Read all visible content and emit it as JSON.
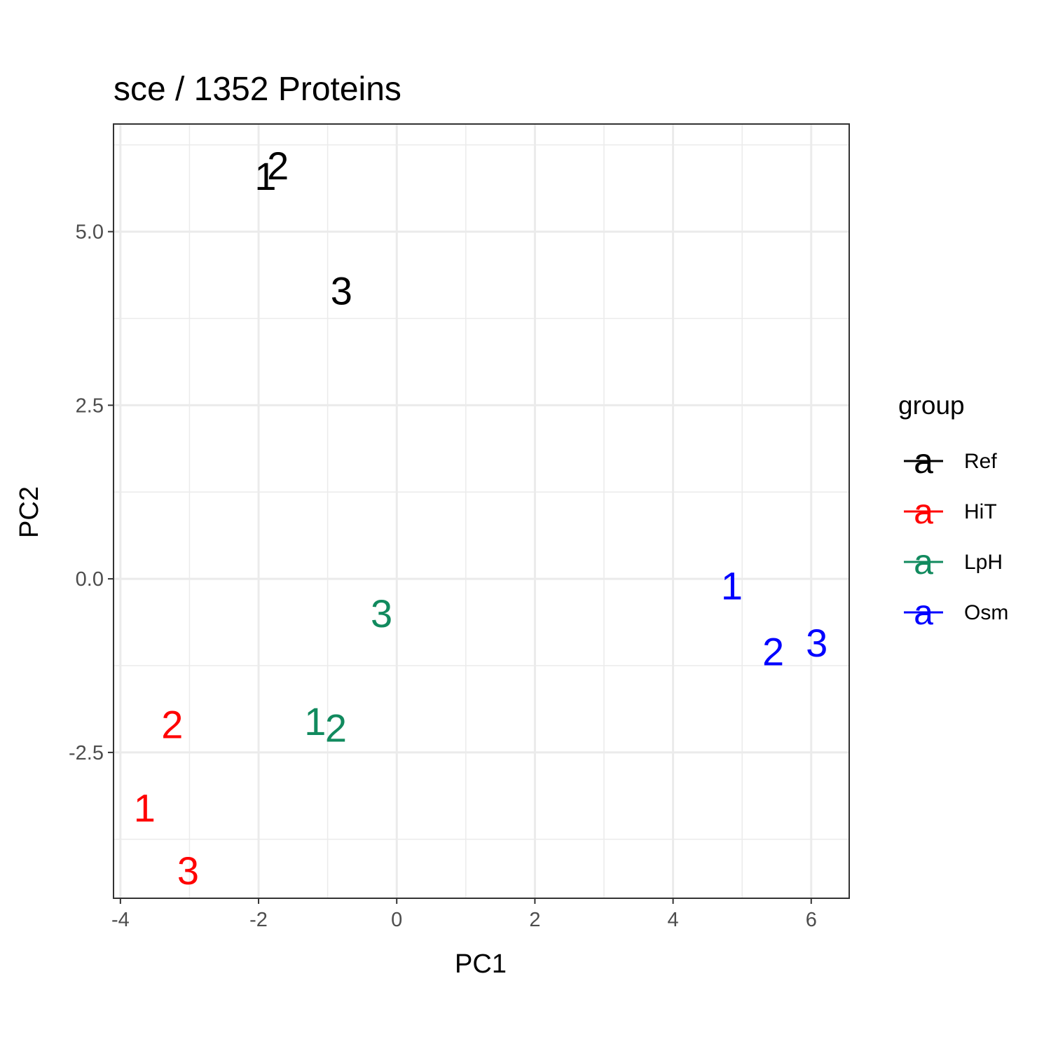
{
  "chart_data": {
    "type": "scatter",
    "title": "sce /  1352  Proteins",
    "xlabel": "PC1",
    "ylabel": "PC2",
    "xlim": [
      -4.1,
      6.55
    ],
    "ylim": [
      -4.6,
      6.55
    ],
    "x_ticks": [
      {
        "value": -4,
        "label": "-4"
      },
      {
        "value": -2,
        "label": "-2"
      },
      {
        "value": 0,
        "label": "0"
      },
      {
        "value": 2,
        "label": "2"
      },
      {
        "value": 4,
        "label": "4"
      },
      {
        "value": 6,
        "label": "6"
      }
    ],
    "y_ticks": [
      {
        "value": -2.5,
        "label": "-2.5"
      },
      {
        "value": 0,
        "label": "0.0"
      },
      {
        "value": 2.5,
        "label": "2.5"
      },
      {
        "value": 5,
        "label": "5.0"
      }
    ],
    "grid": true,
    "legend": {
      "title": "group",
      "position": "right",
      "key_glyph": "a",
      "entries": [
        {
          "label": "Ref",
          "color": "#000000"
        },
        {
          "label": "HiT",
          "color": "#ff0000"
        },
        {
          "label": "LpH",
          "color": "#118a5e"
        },
        {
          "label": "Osm",
          "color": "#0000ff"
        }
      ]
    },
    "series": [
      {
        "name": "Ref",
        "color": "#000000",
        "points": [
          {
            "x": -1.9,
            "y": 5.8,
            "label": "1"
          },
          {
            "x": -1.72,
            "y": 5.95,
            "label": "2"
          },
          {
            "x": -0.8,
            "y": 4.15,
            "label": "3"
          }
        ]
      },
      {
        "name": "HiT",
        "color": "#ff0000",
        "points": [
          {
            "x": -3.65,
            "y": -3.3,
            "label": "1"
          },
          {
            "x": -3.25,
            "y": -2.1,
            "label": "2"
          },
          {
            "x": -3.02,
            "y": -4.2,
            "label": "3"
          }
        ]
      },
      {
        "name": "LpH",
        "color": "#118a5e",
        "points": [
          {
            "x": -1.18,
            "y": -2.05,
            "label": "1"
          },
          {
            "x": -0.88,
            "y": -2.15,
            "label": "2"
          },
          {
            "x": -0.22,
            "y": -0.5,
            "label": "3"
          }
        ]
      },
      {
        "name": "Osm",
        "color": "#0000ff",
        "points": [
          {
            "x": 4.85,
            "y": -0.1,
            "label": "1"
          },
          {
            "x": 5.45,
            "y": -1.05,
            "label": "2"
          },
          {
            "x": 6.08,
            "y": -0.92,
            "label": "3"
          }
        ]
      }
    ]
  }
}
